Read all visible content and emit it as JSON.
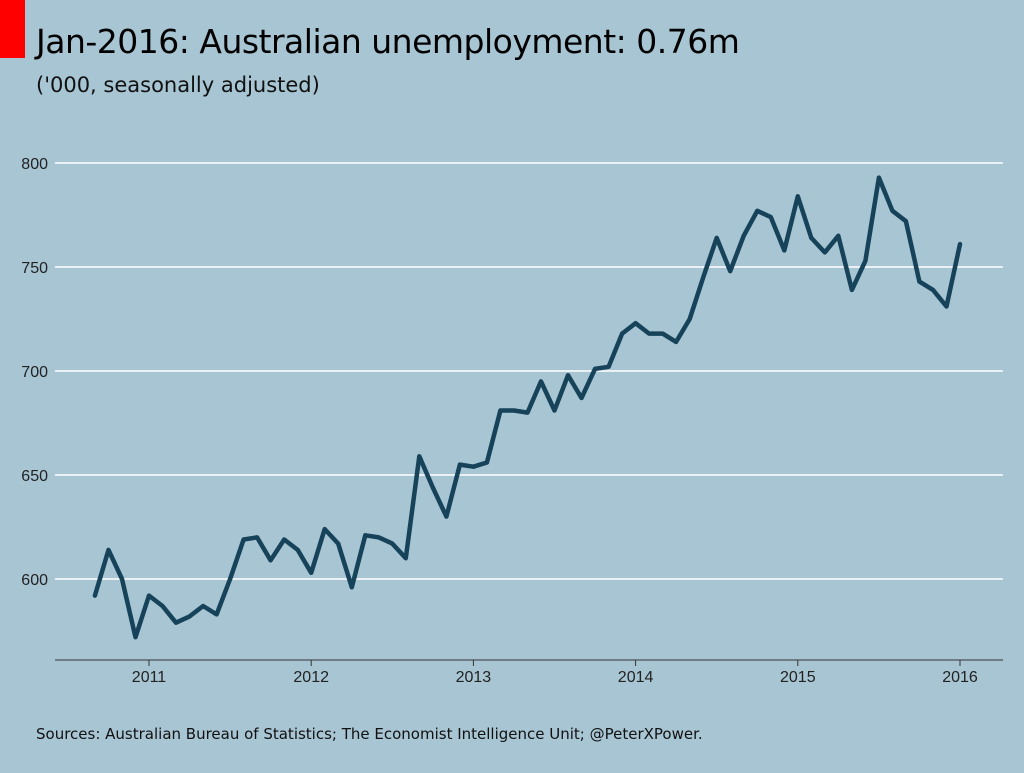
{
  "header": {
    "title": "Jan-2016: Australian unemployment: 0.76m",
    "subtitle": "('000, seasonally adjusted)"
  },
  "footer": {
    "source": "Sources: Australian Bureau of Statistics; The Economist Intelligence Unit; @PeterXPower."
  },
  "colors": {
    "background": "#a8c5d3",
    "accent": "#ff0000",
    "line": "#16435a",
    "grid": "#ffffff"
  },
  "chart_data": {
    "type": "line",
    "title": "Jan-2016: Australian unemployment: 0.76m",
    "subtitle": "('000, seasonally adjusted)",
    "xlabel": "",
    "ylabel": "",
    "x_ticks": [
      2011,
      2012,
      2013,
      2014,
      2015,
      2016
    ],
    "y_ticks": [
      600,
      650,
      700,
      750,
      800
    ],
    "xlim": [
      "2010-06",
      "2016-03"
    ],
    "ylim": [
      561,
      819
    ],
    "grid": "horizontal",
    "legend": "none",
    "series": [
      {
        "x": [
          "2010-09",
          "2010-10",
          "2010-11",
          "2010-12",
          "2011-01",
          "2011-02",
          "2011-03",
          "2011-04",
          "2011-05",
          "2011-06",
          "2011-07",
          "2011-08",
          "2011-09",
          "2011-10",
          "2011-11",
          "2011-12",
          "2012-01",
          "2012-02",
          "2012-03",
          "2012-04",
          "2012-05",
          "2012-06",
          "2012-07",
          "2012-08",
          "2012-09",
          "2012-10",
          "2012-11",
          "2012-12",
          "2013-01",
          "2013-02",
          "2013-03",
          "2013-04",
          "2013-05",
          "2013-06",
          "2013-07",
          "2013-08",
          "2013-09",
          "2013-10",
          "2013-11",
          "2013-12",
          "2014-01",
          "2014-02",
          "2014-03",
          "2014-04",
          "2014-05",
          "2014-06",
          "2014-07",
          "2014-08",
          "2014-09",
          "2014-10",
          "2014-11",
          "2014-12",
          "2015-01",
          "2015-02",
          "2015-03",
          "2015-04",
          "2015-05",
          "2015-06",
          "2015-07",
          "2015-08",
          "2015-09",
          "2015-10",
          "2015-11",
          "2015-12",
          "2016-01"
        ],
        "values": [
          592,
          614,
          600,
          572,
          592,
          587,
          579,
          582,
          587,
          583,
          600,
          619,
          620,
          609,
          619,
          614,
          603,
          624,
          617,
          596,
          621,
          620,
          617,
          610,
          659,
          644,
          630,
          655,
          654,
          656,
          681,
          681,
          680,
          695,
          681,
          698,
          687,
          701,
          702,
          718,
          723,
          718,
          718,
          714,
          725,
          745,
          764,
          748,
          765,
          777,
          774,
          758,
          784,
          764,
          757,
          765,
          739,
          753,
          793,
          777,
          772,
          743,
          739,
          731,
          761
        ]
      }
    ]
  }
}
